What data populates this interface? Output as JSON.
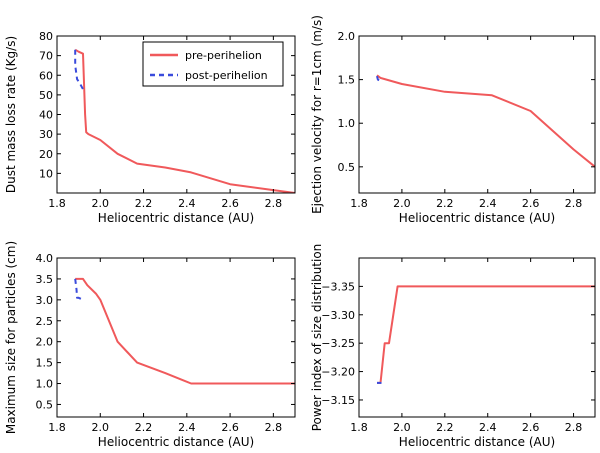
{
  "chart_data": [
    {
      "type": "line",
      "xlabel": "Heliocentric distance (AU)",
      "ylabel": "Dust mass loss rate (Kg/s)",
      "xlim": [
        1.8,
        2.9
      ],
      "ylim": [
        0,
        80
      ],
      "xticks": [
        "1.8",
        "2.0",
        "2.2",
        "2.4",
        "2.6",
        "2.8"
      ],
      "yticks": [
        "10",
        "20",
        "30",
        "40",
        "50",
        "60",
        "70",
        "80"
      ],
      "grid": false,
      "legend": {
        "placement": "top-right",
        "entries": [
          "pre-perihelion",
          "post-perihelion"
        ]
      },
      "series": [
        {
          "name": "pre-perihelion",
          "color": "#f0595b",
          "style": "solid",
          "x": [
            1.884,
            1.9,
            1.92,
            1.93,
            1.935,
            1.945,
            2.0,
            2.08,
            2.17,
            2.3,
            2.42,
            2.6,
            2.8,
            2.9
          ],
          "y": [
            73,
            72,
            71,
            40,
            31,
            30,
            27,
            20,
            15,
            13,
            10.5,
            4.5,
            1.5,
            0
          ]
        },
        {
          "name": "post-perihelion",
          "color": "#3a4bdc",
          "style": "dashed",
          "x": [
            1.884,
            1.884,
            1.893,
            1.905,
            1.925
          ],
          "y": [
            73,
            65,
            58,
            56,
            52
          ]
        }
      ]
    },
    {
      "type": "line",
      "xlabel": "Heliocentric distance (AU)",
      "ylabel": "Ejection velocity for r=1cm (m/s)",
      "xlim": [
        1.8,
        2.9
      ],
      "ylim": [
        0.2,
        2.0
      ],
      "xticks": [
        "1.8",
        "2.0",
        "2.2",
        "2.4",
        "2.6",
        "2.8"
      ],
      "yticks": [
        "0.5",
        "1.0",
        "1.5",
        "2.0"
      ],
      "grid": false,
      "series": [
        {
          "color": "#f0595b",
          "style": "solid",
          "x": [
            1.884,
            1.9,
            2.0,
            2.2,
            2.42,
            2.6,
            2.8,
            2.9
          ],
          "y": [
            1.55,
            1.52,
            1.45,
            1.36,
            1.32,
            1.14,
            0.7,
            0.5
          ]
        },
        {
          "color": "#3a4bdc",
          "style": "dashed",
          "x": [
            1.884,
            1.888,
            1.91
          ],
          "y": [
            1.54,
            1.5,
            1.47
          ]
        }
      ]
    },
    {
      "type": "line",
      "xlabel": "Heliocentric distance (AU)",
      "ylabel": "Maximum size for particles (cm)",
      "xlim": [
        1.8,
        2.9
      ],
      "ylim": [
        0.2,
        4.0
      ],
      "xticks": [
        "1.8",
        "2.0",
        "2.2",
        "2.4",
        "2.6",
        "2.8"
      ],
      "yticks": [
        "0.5",
        "1.0",
        "1.5",
        "2.0",
        "2.5",
        "3.0",
        "3.5",
        "4.0"
      ],
      "grid": false,
      "series": [
        {
          "color": "#f0595b",
          "style": "solid",
          "x": [
            1.884,
            1.92,
            1.94,
            1.98,
            2.0,
            2.08,
            2.17,
            2.3,
            2.42,
            2.6,
            2.9
          ],
          "y": [
            3.5,
            3.5,
            3.35,
            3.15,
            3.0,
            2.0,
            1.5,
            1.25,
            1.0,
            1.0,
            1.0
          ]
        },
        {
          "color": "#3a4bdc",
          "style": "dashed",
          "x": [
            1.884,
            1.89,
            1.893,
            1.9,
            1.92
          ],
          "y": [
            3.5,
            3.25,
            3.05,
            3.05,
            3.0
          ]
        }
      ]
    },
    {
      "type": "line",
      "xlabel": "Heliocentric distance (AU)",
      "ylabel": "Power index of size distribution",
      "xlim": [
        1.8,
        2.9
      ],
      "ylim": [
        -3.12,
        -3.4
      ],
      "inverted_y": true,
      "xticks": [
        "1.8",
        "2.0",
        "2.2",
        "2.4",
        "2.6",
        "2.8"
      ],
      "yticks": [
        "−3.15",
        "−3.20",
        "−3.25",
        "−3.30",
        "−3.35"
      ],
      "grid": false,
      "series": [
        {
          "color": "#f0595b",
          "style": "solid",
          "x": [
            1.884,
            1.9,
            1.92,
            1.94,
            1.96,
            1.98,
            2.9
          ],
          "y": [
            -3.18,
            -3.18,
            -3.25,
            -3.25,
            -3.3,
            -3.35,
            -3.35
          ]
        },
        {
          "color": "#3a4bdc",
          "style": "dashed",
          "x": [
            1.884,
            1.905
          ],
          "y": [
            -3.18,
            -3.18
          ]
        }
      ]
    }
  ]
}
